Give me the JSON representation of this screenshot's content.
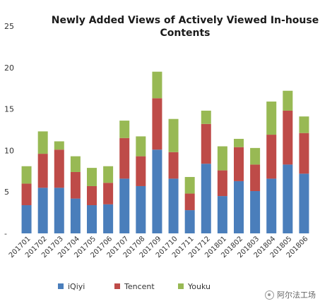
{
  "chart_data": {
    "type": "bar",
    "stacked": true,
    "title_lines": [
      "Newly Added Views of Actively Viewed In-house",
      "Contents"
    ],
    "ylim": [
      0,
      25
    ],
    "yticks": [
      0,
      5,
      10,
      15,
      20,
      25
    ],
    "categories": [
      "201701",
      "201702",
      "201703",
      "201704",
      "201705",
      "201706",
      "201707",
      "201708",
      "201709",
      "201710",
      "201711",
      "201712",
      "201801",
      "201802",
      "201803",
      "201804",
      "201805",
      "201806"
    ],
    "series": [
      {
        "name": "iQiyi",
        "color": "#4a7ebb",
        "values": [
          3.4,
          5.5,
          5.5,
          4.2,
          3.4,
          3.5,
          6.6,
          5.7,
          10.1,
          6.6,
          2.8,
          8.4,
          4.5,
          6.3,
          5.1,
          6.6,
          8.3,
          7.2
        ]
      },
      {
        "name": "Tencent",
        "color": "#be4b48",
        "values": [
          2.6,
          4.1,
          4.6,
          3.2,
          2.3,
          2.6,
          4.9,
          3.6,
          6.2,
          3.2,
          2.0,
          4.8,
          3.1,
          4.1,
          3.2,
          5.3,
          6.5,
          4.9
        ]
      },
      {
        "name": "Youku",
        "color": "#98b954",
        "values": [
          2.1,
          2.7,
          1.0,
          1.9,
          2.2,
          2.0,
          2.1,
          2.4,
          3.2,
          4.0,
          2.0,
          1.6,
          2.9,
          1.0,
          2.0,
          4.0,
          2.4,
          2.0
        ]
      }
    ],
    "legend_position": "bottom"
  },
  "watermark": {
    "text": "阿尔法工场",
    "icon": "watermark-icon"
  }
}
